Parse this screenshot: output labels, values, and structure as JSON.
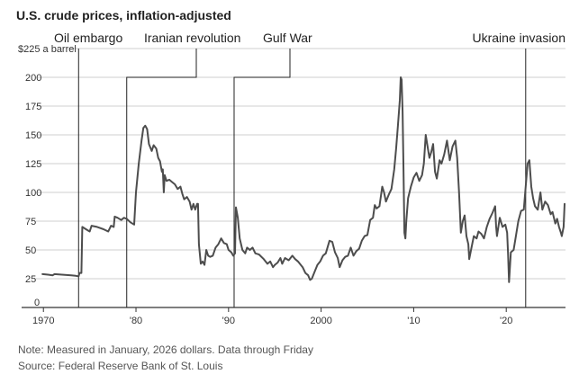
{
  "title": "U.S. crude prices, inflation-adjusted",
  "note": "Note: Measured in January, 2026 dollars. Data through Friday",
  "source": "Source: Federal Reserve Bank of St. Louis",
  "colors": {
    "line": "#4d4d4d",
    "grid": "#cfcfcf",
    "axis": "#333333",
    "annotation": "#222222"
  },
  "chart_data": {
    "type": "line",
    "title": "U.S. crude prices, inflation-adjusted",
    "ylabel": "",
    "y_unit_label": "$225 a barrel",
    "ylim": [
      0,
      225
    ],
    "xlim": [
      1969.2,
      2026.4
    ],
    "y_ticks": [
      0,
      25,
      50,
      75,
      100,
      125,
      150,
      175,
      200
    ],
    "x_ticks": [
      {
        "value": 1970,
        "label": "1970"
      },
      {
        "value": 1980,
        "label": "'80"
      },
      {
        "value": 1990,
        "label": "'90"
      },
      {
        "value": 2000,
        "label": "2000"
      },
      {
        "value": 2010,
        "label": "'10"
      },
      {
        "value": 2020,
        "label": "'20"
      }
    ],
    "grid": true,
    "annotations": [
      {
        "label": "Oil embargo",
        "x": 1973.8
      },
      {
        "label": "Iranian revolution",
        "x": 1979.0
      },
      {
        "label": "Gulf War",
        "x": 1990.6
      },
      {
        "label": "Ukraine invasion",
        "x": 2022.1
      }
    ],
    "series": [
      {
        "points": [
          [
            1969.9,
            29
          ],
          [
            1970.5,
            28.5
          ],
          [
            1971.0,
            28
          ],
          [
            1971.2,
            29
          ],
          [
            1972.0,
            28.5
          ],
          [
            1973.0,
            28
          ],
          [
            1973.5,
            27.5
          ],
          [
            1973.8,
            27
          ],
          [
            1973.9,
            30
          ],
          [
            1974.1,
            30
          ],
          [
            1974.2,
            70
          ],
          [
            1974.6,
            68
          ],
          [
            1975.0,
            66
          ],
          [
            1975.2,
            71
          ],
          [
            1975.8,
            70
          ],
          [
            1976.5,
            68
          ],
          [
            1977.0,
            66
          ],
          [
            1977.3,
            71
          ],
          [
            1977.6,
            70
          ],
          [
            1977.7,
            79
          ],
          [
            1978.0,
            78
          ],
          [
            1978.4,
            76
          ],
          [
            1978.7,
            78
          ],
          [
            1979.0,
            77
          ],
          [
            1979.4,
            74
          ],
          [
            1979.8,
            72
          ],
          [
            1980.0,
            100
          ],
          [
            1980.3,
            125
          ],
          [
            1980.6,
            145
          ],
          [
            1980.8,
            156
          ],
          [
            1981.0,
            158
          ],
          [
            1981.2,
            155
          ],
          [
            1981.4,
            142
          ],
          [
            1981.7,
            136
          ],
          [
            1981.9,
            141
          ],
          [
            1982.2,
            138
          ],
          [
            1982.4,
            130
          ],
          [
            1982.6,
            127
          ],
          [
            1982.8,
            118
          ],
          [
            1982.9,
            120
          ],
          [
            1983.0,
            100
          ],
          [
            1983.1,
            115
          ],
          [
            1983.3,
            110
          ],
          [
            1983.6,
            111
          ],
          [
            1983.9,
            109
          ],
          [
            1984.2,
            107
          ],
          [
            1984.5,
            103
          ],
          [
            1984.8,
            105
          ],
          [
            1985.0,
            99
          ],
          [
            1985.2,
            94
          ],
          [
            1985.5,
            96
          ],
          [
            1985.8,
            92
          ],
          [
            1986.0,
            85
          ],
          [
            1986.2,
            90
          ],
          [
            1986.4,
            85
          ],
          [
            1986.6,
            90
          ],
          [
            1986.7,
            90
          ],
          [
            1986.8,
            55
          ],
          [
            1987.0,
            38
          ],
          [
            1987.2,
            40
          ],
          [
            1987.4,
            37
          ],
          [
            1987.6,
            50
          ],
          [
            1987.8,
            45
          ],
          [
            1988.0,
            44
          ],
          [
            1988.3,
            45
          ],
          [
            1988.6,
            52
          ],
          [
            1988.9,
            55
          ],
          [
            1989.2,
            60
          ],
          [
            1989.5,
            56
          ],
          [
            1989.8,
            55
          ],
          [
            1990.0,
            50
          ],
          [
            1990.3,
            48
          ],
          [
            1990.5,
            45
          ],
          [
            1990.7,
            47
          ],
          [
            1990.8,
            87
          ],
          [
            1991.0,
            78
          ],
          [
            1991.2,
            60
          ],
          [
            1991.5,
            50
          ],
          [
            1991.8,
            47
          ],
          [
            1992.0,
            52
          ],
          [
            1992.3,
            50
          ],
          [
            1992.6,
            52
          ],
          [
            1992.9,
            47
          ],
          [
            1993.3,
            46
          ],
          [
            1993.8,
            42
          ],
          [
            1994.2,
            38
          ],
          [
            1994.5,
            40
          ],
          [
            1994.8,
            35
          ],
          [
            1995.0,
            37
          ],
          [
            1995.3,
            39
          ],
          [
            1995.6,
            43
          ],
          [
            1995.8,
            38
          ],
          [
            1996.1,
            43
          ],
          [
            1996.5,
            41
          ],
          [
            1996.9,
            45
          ],
          [
            1997.2,
            42
          ],
          [
            1997.5,
            40
          ],
          [
            1997.8,
            37
          ],
          [
            1998.0,
            35
          ],
          [
            1998.3,
            30
          ],
          [
            1998.6,
            28
          ],
          [
            1998.8,
            24
          ],
          [
            1999.0,
            25
          ],
          [
            1999.3,
            31
          ],
          [
            1999.6,
            37
          ],
          [
            1999.9,
            40
          ],
          [
            2000.2,
            45
          ],
          [
            2000.5,
            47
          ],
          [
            2000.9,
            58
          ],
          [
            2001.2,
            57
          ],
          [
            2001.5,
            48
          ],
          [
            2001.8,
            43
          ],
          [
            2002.0,
            35
          ],
          [
            2002.3,
            41
          ],
          [
            2002.6,
            44
          ],
          [
            2002.9,
            45
          ],
          [
            2003.2,
            52
          ],
          [
            2003.5,
            45
          ],
          [
            2003.8,
            49
          ],
          [
            2004.1,
            51
          ],
          [
            2004.4,
            58
          ],
          [
            2004.7,
            62
          ],
          [
            2005.0,
            63
          ],
          [
            2005.3,
            76
          ],
          [
            2005.6,
            78
          ],
          [
            2005.8,
            89
          ],
          [
            2006.0,
            86
          ],
          [
            2006.3,
            88
          ],
          [
            2006.6,
            105
          ],
          [
            2006.8,
            100
          ],
          [
            2007.0,
            92
          ],
          [
            2007.3,
            98
          ],
          [
            2007.6,
            103
          ],
          [
            2007.9,
            120
          ],
          [
            2008.1,
            138
          ],
          [
            2008.3,
            158
          ],
          [
            2008.5,
            180
          ],
          [
            2008.6,
            200
          ],
          [
            2008.7,
            198
          ],
          [
            2008.8,
            170
          ],
          [
            2008.9,
            120
          ],
          [
            2009.0,
            65
          ],
          [
            2009.1,
            60
          ],
          [
            2009.2,
            75
          ],
          [
            2009.4,
            95
          ],
          [
            2009.7,
            105
          ],
          [
            2010.0,
            113
          ],
          [
            2010.3,
            117
          ],
          [
            2010.6,
            110
          ],
          [
            2010.9,
            115
          ],
          [
            2011.1,
            125
          ],
          [
            2011.3,
            150
          ],
          [
            2011.5,
            140
          ],
          [
            2011.7,
            130
          ],
          [
            2011.9,
            135
          ],
          [
            2012.1,
            142
          ],
          [
            2012.3,
            118
          ],
          [
            2012.5,
            112
          ],
          [
            2012.8,
            128
          ],
          [
            2013.0,
            125
          ],
          [
            2013.3,
            133
          ],
          [
            2013.6,
            145
          ],
          [
            2013.9,
            128
          ],
          [
            2014.2,
            140
          ],
          [
            2014.5,
            145
          ],
          [
            2014.7,
            130
          ],
          [
            2014.9,
            100
          ],
          [
            2015.1,
            65
          ],
          [
            2015.3,
            75
          ],
          [
            2015.5,
            80
          ],
          [
            2015.7,
            62
          ],
          [
            2015.9,
            55
          ],
          [
            2016.0,
            42
          ],
          [
            2016.2,
            50
          ],
          [
            2016.5,
            62
          ],
          [
            2016.8,
            60
          ],
          [
            2017.0,
            66
          ],
          [
            2017.3,
            64
          ],
          [
            2017.6,
            60
          ],
          [
            2017.9,
            70
          ],
          [
            2018.2,
            77
          ],
          [
            2018.5,
            82
          ],
          [
            2018.8,
            88
          ],
          [
            2018.9,
            71
          ],
          [
            2019.0,
            62
          ],
          [
            2019.3,
            78
          ],
          [
            2019.6,
            70
          ],
          [
            2019.9,
            72
          ],
          [
            2020.1,
            65
          ],
          [
            2020.2,
            45
          ],
          [
            2020.3,
            22
          ],
          [
            2020.5,
            48
          ],
          [
            2020.8,
            50
          ],
          [
            2021.0,
            60
          ],
          [
            2021.3,
            75
          ],
          [
            2021.6,
            84
          ],
          [
            2021.9,
            85
          ],
          [
            2022.1,
            105
          ],
          [
            2022.3,
            125
          ],
          [
            2022.5,
            128
          ],
          [
            2022.7,
            105
          ],
          [
            2022.9,
            95
          ],
          [
            2023.1,
            88
          ],
          [
            2023.4,
            85
          ],
          [
            2023.7,
            100
          ],
          [
            2023.9,
            85
          ],
          [
            2024.2,
            92
          ],
          [
            2024.5,
            89
          ],
          [
            2024.8,
            81
          ],
          [
            2025.0,
            83
          ],
          [
            2025.3,
            73
          ],
          [
            2025.5,
            77
          ],
          [
            2025.7,
            70
          ],
          [
            2025.9,
            65
          ],
          [
            2026.0,
            62
          ],
          [
            2026.2,
            70
          ],
          [
            2026.3,
            90
          ]
        ]
      }
    ]
  }
}
